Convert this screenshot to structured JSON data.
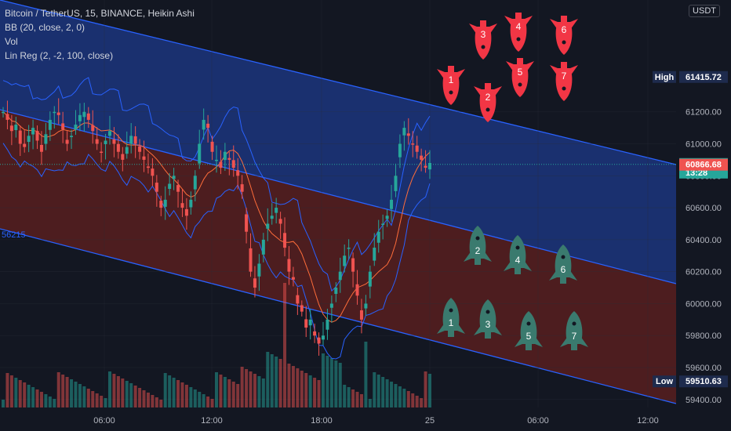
{
  "legend": {
    "title": "Bitcoin / TetherUS, 15, BINANCE, Heikin Ashi",
    "bb": "BB (20, close, 2, 0)",
    "vol": "Vol",
    "linreg": "Lin Reg (2, -2, 100, close)"
  },
  "currency": "USDT",
  "left_tag": "56215",
  "colors": {
    "background": "#131722",
    "up": "#26a69a",
    "down": "#ef5350",
    "channel_upper_fill": "#1e3a8a",
    "channel_lower_fill": "#5c1f1f",
    "channel_line": "#2962ff",
    "bb_band": "#2962ff",
    "bb_basis": "#ff6d3a",
    "short_rocket": "#f23645",
    "long_rocket": "#3a7a6e"
  },
  "chart_data": {
    "type": "candlestick",
    "symbol": "Bitcoin / TetherUS",
    "interval": "15",
    "ylim": [
      59350,
      61900
    ],
    "y_ticks": [
      59400,
      59600,
      59800,
      60000,
      60200,
      60400,
      60600,
      60800,
      61000,
      61200
    ],
    "y_tick_labels": [
      "59400.00",
      "59600.00",
      "59800.00",
      "60000.00",
      "60200.00",
      "60400.00",
      "60600.00",
      "60800.00",
      "61000.00",
      "61200.00"
    ],
    "x_tick_labels": [
      "06:00",
      "12:00",
      "18:00",
      "25",
      "06:00",
      "12:00"
    ],
    "price_tags": [
      {
        "label": "High",
        "value": "61415.72",
        "color": "#1e2b4d",
        "y": 61415.72
      },
      {
        "label": "",
        "value": "60871.33",
        "sub": "13:28",
        "color": "#26a69a",
        "y": 60871.33
      },
      {
        "label": "",
        "value": "60866.68",
        "color": "#ef5350",
        "y": 60866.68
      },
      {
        "label": "Low",
        "value": "59510.63",
        "color": "#1e2b4d",
        "y": 59510.63
      }
    ],
    "last_price": 60871.33,
    "short_targets": [
      "1",
      "2",
      "3",
      "4",
      "5",
      "6",
      "7"
    ],
    "long_targets": [
      "1",
      "2",
      "3",
      "4",
      "5",
      "6",
      "7"
    ],
    "closes": [
      61200,
      61150,
      61080,
      61120,
      61000,
      60980,
      61050,
      61100,
      61020,
      60950,
      61060,
      61150,
      61200,
      61180,
      61090,
      61000,
      61050,
      61120,
      61180,
      61200,
      61150,
      61080,
      61000,
      60950,
      61020,
      61080,
      61000,
      60950,
      60900,
      60980,
      61050,
      61000,
      60950,
      60900,
      60850,
      60800,
      60700,
      60600,
      60650,
      60750,
      60800,
      60700,
      60600,
      60550,
      60650,
      60800,
      61000,
      61150,
      61100,
      60950,
      60900,
      60850,
      60950,
      60900,
      60850,
      60800,
      60700,
      60450,
      60200,
      60100,
      60250,
      60400,
      60500,
      60550,
      60600,
      60500,
      60350,
      60200,
      60150,
      60000,
      59950,
      59850,
      59900,
      59800,
      59750,
      59800,
      59900,
      60000,
      60100,
      60200,
      60300,
      60350,
      60200,
      60050,
      59900,
      60000,
      60200,
      60350,
      60450,
      60500,
      60550,
      60650,
      60800,
      61000,
      61100,
      61050,
      61000,
      60950,
      60900,
      60850,
      60880
    ]
  }
}
